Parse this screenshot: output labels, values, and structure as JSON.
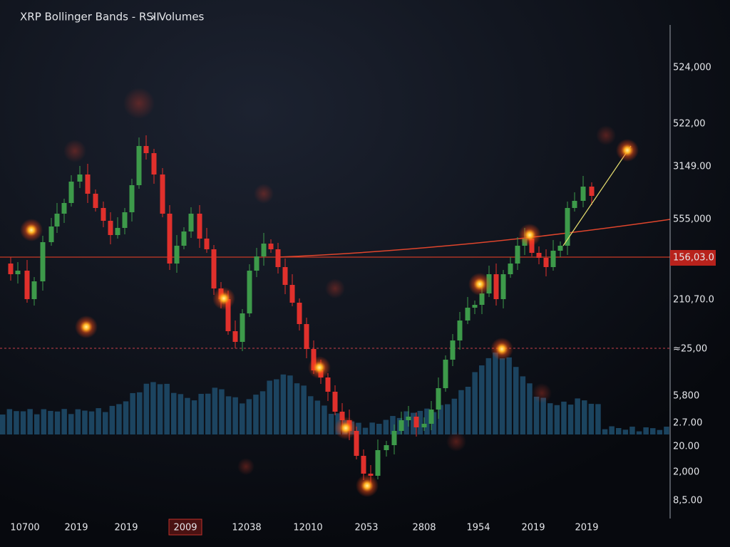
{
  "header": {
    "title": "XRP Bollinger Bands - RSII",
    "menu": "› Volumes"
  },
  "y_axis": {
    "labels": [
      "524,000",
      "522,00",
      "3149.00",
      "555,000",
      "156,03.0",
      "210,70.0",
      "≈25,00",
      "5,800",
      "2.7.00",
      "20.00",
      "2,000",
      "8,5.00"
    ],
    "highlighted": 4
  },
  "x_axis": {
    "labels": [
      "10700",
      "2019",
      "2019",
      "2009",
      "12038",
      "12010",
      "2053",
      "2808",
      "1954",
      "2019",
      "2019"
    ],
    "highlighted": 3
  }
}
